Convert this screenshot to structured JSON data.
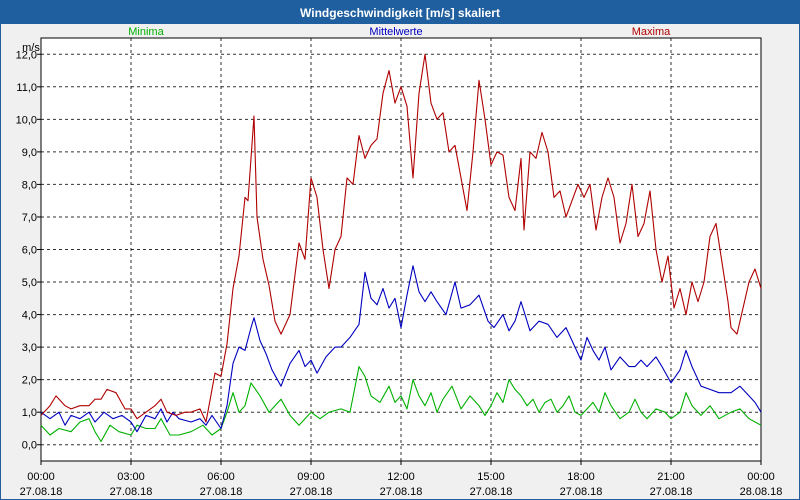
{
  "window": {
    "title": "Windgeschwindigkeit [m/s] skaliert"
  },
  "chart_data": {
    "type": "line",
    "title": "Windgeschwindigkeit [m/s] skaliert",
    "ylabel": "m/s",
    "ylim": [
      -0.5,
      12.5
    ],
    "xlim_hours": [
      0,
      24
    ],
    "y_ticks": [
      "0,0",
      "1,0",
      "2,0",
      "3,0",
      "4,0",
      "5,0",
      "6,0",
      "7,0",
      "8,0",
      "9,0",
      "10,0",
      "11,0",
      "12,0"
    ],
    "x_ticks": [
      {
        "time": "00:00",
        "date": "27.08.18"
      },
      {
        "time": "03:00",
        "date": "27.08.18"
      },
      {
        "time": "06:00",
        "date": "27.08.18"
      },
      {
        "time": "09:00",
        "date": "27.08.18"
      },
      {
        "time": "12:00",
        "date": "27.08.18"
      },
      {
        "time": "15:00",
        "date": "27.08.18"
      },
      {
        "time": "18:00",
        "date": "27.08.18"
      },
      {
        "time": "21:00",
        "date": "27.08.18"
      },
      {
        "time": "00:00",
        "date": "28.08.18"
      }
    ],
    "grid": true,
    "legend_position": "top",
    "series": [
      {
        "name": "Minima",
        "color": "#00b000",
        "points": [
          [
            0,
            0.6
          ],
          [
            0.3,
            0.3
          ],
          [
            0.6,
            0.5
          ],
          [
            1,
            0.4
          ],
          [
            1.3,
            0.7
          ],
          [
            1.6,
            0.8
          ],
          [
            1.8,
            0.4
          ],
          [
            2,
            0.1
          ],
          [
            2.3,
            0.6
          ],
          [
            2.6,
            0.4
          ],
          [
            3,
            0.3
          ],
          [
            3.2,
            0.6
          ],
          [
            3.5,
            0.5
          ],
          [
            3.8,
            0.5
          ],
          [
            4,
            0.8
          ],
          [
            4.3,
            0.3
          ],
          [
            4.6,
            0.3
          ],
          [
            5,
            0.4
          ],
          [
            5.4,
            0.6
          ],
          [
            5.7,
            0.3
          ],
          [
            6,
            0.5
          ],
          [
            6.2,
            1.0
          ],
          [
            6.4,
            1.6
          ],
          [
            6.6,
            1.0
          ],
          [
            6.8,
            1.2
          ],
          [
            7,
            1.9
          ],
          [
            7.3,
            1.5
          ],
          [
            7.6,
            1.0
          ],
          [
            8,
            1.4
          ],
          [
            8.3,
            0.9
          ],
          [
            8.6,
            0.6
          ],
          [
            9,
            1.0
          ],
          [
            9.3,
            0.8
          ],
          [
            9.6,
            1.0
          ],
          [
            10,
            1.1
          ],
          [
            10.3,
            1.0
          ],
          [
            10.6,
            2.4
          ],
          [
            10.8,
            2.1
          ],
          [
            11,
            1.5
          ],
          [
            11.3,
            1.3
          ],
          [
            11.6,
            1.8
          ],
          [
            11.8,
            1.3
          ],
          [
            12,
            1.5
          ],
          [
            12.2,
            1.1
          ],
          [
            12.4,
            2.0
          ],
          [
            12.6,
            1.5
          ],
          [
            12.8,
            1.2
          ],
          [
            13,
            1.6
          ],
          [
            13.2,
            1.0
          ],
          [
            13.4,
            1.4
          ],
          [
            13.7,
            1.8
          ],
          [
            14,
            1.1
          ],
          [
            14.3,
            1.5
          ],
          [
            14.6,
            1.2
          ],
          [
            14.8,
            0.9
          ],
          [
            15,
            1.2
          ],
          [
            15.2,
            1.6
          ],
          [
            15.4,
            1.3
          ],
          [
            15.6,
            2.0
          ],
          [
            15.8,
            1.7
          ],
          [
            16,
            1.5
          ],
          [
            16.2,
            1.2
          ],
          [
            16.4,
            1.4
          ],
          [
            16.6,
            1.0
          ],
          [
            16.8,
            1.3
          ],
          [
            17,
            1.4
          ],
          [
            17.2,
            1.0
          ],
          [
            17.4,
            1.2
          ],
          [
            17.6,
            1.5
          ],
          [
            17.8,
            1.0
          ],
          [
            18,
            0.9
          ],
          [
            18.2,
            1.1
          ],
          [
            18.4,
            1.3
          ],
          [
            18.6,
            1.0
          ],
          [
            18.8,
            1.6
          ],
          [
            19,
            1.2
          ],
          [
            19.3,
            0.8
          ],
          [
            19.6,
            1.0
          ],
          [
            19.8,
            1.4
          ],
          [
            20,
            1.0
          ],
          [
            20.2,
            0.8
          ],
          [
            20.5,
            1.1
          ],
          [
            20.8,
            1.0
          ],
          [
            21,
            0.8
          ],
          [
            21.3,
            1.0
          ],
          [
            21.5,
            1.6
          ],
          [
            21.7,
            1.2
          ],
          [
            22,
            0.9
          ],
          [
            22.3,
            1.2
          ],
          [
            22.6,
            0.8
          ],
          [
            23,
            1.0
          ],
          [
            23.3,
            1.1
          ],
          [
            23.6,
            0.8
          ],
          [
            23.8,
            0.7
          ],
          [
            24,
            0.6
          ]
        ]
      },
      {
        "name": "Mittelwerte",
        "color": "#0000c0",
        "points": [
          [
            0,
            1.0
          ],
          [
            0.3,
            0.8
          ],
          [
            0.6,
            1.0
          ],
          [
            0.8,
            0.6
          ],
          [
            1,
            0.9
          ],
          [
            1.3,
            0.8
          ],
          [
            1.6,
            1.0
          ],
          [
            1.8,
            0.7
          ],
          [
            2.1,
            1.0
          ],
          [
            2.4,
            0.8
          ],
          [
            2.7,
            0.9
          ],
          [
            3,
            0.7
          ],
          [
            3.2,
            0.4
          ],
          [
            3.5,
            0.9
          ],
          [
            3.8,
            0.8
          ],
          [
            4,
            1.1
          ],
          [
            4.2,
            0.7
          ],
          [
            4.4,
            1.0
          ],
          [
            4.6,
            0.8
          ],
          [
            5,
            0.7
          ],
          [
            5.3,
            0.8
          ],
          [
            5.5,
            0.6
          ],
          [
            5.7,
            0.9
          ],
          [
            6,
            0.5
          ],
          [
            6.2,
            1.2
          ],
          [
            6.4,
            2.5
          ],
          [
            6.6,
            3.0
          ],
          [
            6.8,
            2.9
          ],
          [
            7,
            3.6
          ],
          [
            7.1,
            3.9
          ],
          [
            7.3,
            3.2
          ],
          [
            7.5,
            2.8
          ],
          [
            7.7,
            2.3
          ],
          [
            8,
            1.8
          ],
          [
            8.3,
            2.5
          ],
          [
            8.6,
            2.9
          ],
          [
            8.8,
            2.4
          ],
          [
            9,
            2.6
          ],
          [
            9.2,
            2.2
          ],
          [
            9.5,
            2.7
          ],
          [
            9.8,
            3.0
          ],
          [
            10,
            3.0
          ],
          [
            10.3,
            3.3
          ],
          [
            10.6,
            3.7
          ],
          [
            10.8,
            5.3
          ],
          [
            11,
            4.5
          ],
          [
            11.2,
            4.3
          ],
          [
            11.4,
            4.8
          ],
          [
            11.6,
            4.2
          ],
          [
            11.8,
            4.5
          ],
          [
            12,
            3.6
          ],
          [
            12.2,
            4.6
          ],
          [
            12.4,
            5.5
          ],
          [
            12.6,
            4.7
          ],
          [
            12.8,
            4.4
          ],
          [
            13,
            4.7
          ],
          [
            13.2,
            4.4
          ],
          [
            13.5,
            4.0
          ],
          [
            13.8,
            5.0
          ],
          [
            14,
            4.2
          ],
          [
            14.3,
            4.3
          ],
          [
            14.6,
            4.6
          ],
          [
            14.9,
            3.8
          ],
          [
            15.1,
            3.6
          ],
          [
            15.4,
            4.0
          ],
          [
            15.6,
            3.5
          ],
          [
            15.8,
            3.8
          ],
          [
            16,
            4.4
          ],
          [
            16.3,
            3.5
          ],
          [
            16.6,
            3.8
          ],
          [
            16.9,
            3.7
          ],
          [
            17.2,
            3.3
          ],
          [
            17.5,
            3.6
          ],
          [
            17.7,
            3.2
          ],
          [
            18,
            2.6
          ],
          [
            18.2,
            3.3
          ],
          [
            18.4,
            2.9
          ],
          [
            18.6,
            2.6
          ],
          [
            18.8,
            3.0
          ],
          [
            19,
            2.3
          ],
          [
            19.3,
            2.7
          ],
          [
            19.6,
            2.4
          ],
          [
            19.8,
            2.4
          ],
          [
            20,
            2.6
          ],
          [
            20.2,
            2.4
          ],
          [
            20.5,
            2.7
          ],
          [
            20.7,
            2.4
          ],
          [
            21,
            1.9
          ],
          [
            21.3,
            2.3
          ],
          [
            21.5,
            2.9
          ],
          [
            21.7,
            2.4
          ],
          [
            22,
            1.8
          ],
          [
            22.3,
            1.7
          ],
          [
            22.6,
            1.6
          ],
          [
            23,
            1.6
          ],
          [
            23.3,
            1.8
          ],
          [
            23.6,
            1.5
          ],
          [
            23.8,
            1.3
          ],
          [
            24,
            1.0
          ]
        ]
      },
      {
        "name": "Maxima",
        "color": "#b00000",
        "points": [
          [
            0,
            0.9
          ],
          [
            0.3,
            1.2
          ],
          [
            0.5,
            1.5
          ],
          [
            0.8,
            1.2
          ],
          [
            1,
            1.1
          ],
          [
            1.3,
            1.2
          ],
          [
            1.6,
            1.2
          ],
          [
            1.8,
            1.4
          ],
          [
            2,
            1.4
          ],
          [
            2.2,
            1.7
          ],
          [
            2.5,
            1.6
          ],
          [
            2.8,
            1.1
          ],
          [
            3,
            1.1
          ],
          [
            3.2,
            0.8
          ],
          [
            3.5,
            1.0
          ],
          [
            3.8,
            1.2
          ],
          [
            4,
            1.4
          ],
          [
            4.2,
            1.0
          ],
          [
            4.5,
            0.9
          ],
          [
            4.8,
            1.0
          ],
          [
            5,
            1.0
          ],
          [
            5.3,
            1.1
          ],
          [
            5.5,
            0.7
          ],
          [
            5.8,
            2.2
          ],
          [
            6,
            2.1
          ],
          [
            6.2,
            3.1
          ],
          [
            6.4,
            4.8
          ],
          [
            6.6,
            5.8
          ],
          [
            6.8,
            7.6
          ],
          [
            6.9,
            7.5
          ],
          [
            7.1,
            10.1
          ],
          [
            7.2,
            7.0
          ],
          [
            7.4,
            5.7
          ],
          [
            7.6,
            4.9
          ],
          [
            7.8,
            3.8
          ],
          [
            8,
            3.4
          ],
          [
            8.3,
            4.0
          ],
          [
            8.6,
            6.2
          ],
          [
            8.8,
            5.7
          ],
          [
            9,
            8.2
          ],
          [
            9.2,
            7.6
          ],
          [
            9.4,
            6.0
          ],
          [
            9.6,
            4.8
          ],
          [
            9.8,
            6.0
          ],
          [
            10,
            6.4
          ],
          [
            10.2,
            8.2
          ],
          [
            10.4,
            8.0
          ],
          [
            10.6,
            9.5
          ],
          [
            10.8,
            8.8
          ],
          [
            11,
            9.2
          ],
          [
            11.2,
            9.4
          ],
          [
            11.4,
            10.8
          ],
          [
            11.6,
            11.5
          ],
          [
            11.8,
            10.5
          ],
          [
            12,
            11.0
          ],
          [
            12.2,
            10.4
          ],
          [
            12.4,
            8.2
          ],
          [
            12.6,
            10.8
          ],
          [
            12.8,
            12.0
          ],
          [
            13,
            10.5
          ],
          [
            13.2,
            10.0
          ],
          [
            13.4,
            10.2
          ],
          [
            13.6,
            9.0
          ],
          [
            13.8,
            9.2
          ],
          [
            14,
            8.2
          ],
          [
            14.2,
            7.2
          ],
          [
            14.4,
            9.0
          ],
          [
            14.6,
            11.2
          ],
          [
            14.8,
            10.0
          ],
          [
            15,
            8.6
          ],
          [
            15.2,
            9.0
          ],
          [
            15.4,
            8.9
          ],
          [
            15.6,
            7.6
          ],
          [
            15.8,
            7.2
          ],
          [
            16,
            8.8
          ],
          [
            16.1,
            6.6
          ],
          [
            16.3,
            9.0
          ],
          [
            16.5,
            8.8
          ],
          [
            16.7,
            9.6
          ],
          [
            16.9,
            9.0
          ],
          [
            17.1,
            7.6
          ],
          [
            17.3,
            7.8
          ],
          [
            17.5,
            7.0
          ],
          [
            17.7,
            7.5
          ],
          [
            17.9,
            8.0
          ],
          [
            18.1,
            7.6
          ],
          [
            18.3,
            8.0
          ],
          [
            18.5,
            6.6
          ],
          [
            18.7,
            7.6
          ],
          [
            18.9,
            8.2
          ],
          [
            19.1,
            7.6
          ],
          [
            19.3,
            6.2
          ],
          [
            19.5,
            6.8
          ],
          [
            19.7,
            8.0
          ],
          [
            19.9,
            6.4
          ],
          [
            20.1,
            6.8
          ],
          [
            20.3,
            7.8
          ],
          [
            20.5,
            6.0
          ],
          [
            20.7,
            5.0
          ],
          [
            20.9,
            5.8
          ],
          [
            21.1,
            4.2
          ],
          [
            21.3,
            4.8
          ],
          [
            21.5,
            4.0
          ],
          [
            21.7,
            5.0
          ],
          [
            21.9,
            4.4
          ],
          [
            22.1,
            5.0
          ],
          [
            22.3,
            6.4
          ],
          [
            22.5,
            6.8
          ],
          [
            22.7,
            5.6
          ],
          [
            22.9,
            4.4
          ],
          [
            23,
            3.6
          ],
          [
            23.2,
            3.4
          ],
          [
            23.4,
            4.2
          ],
          [
            23.6,
            5.0
          ],
          [
            23.8,
            5.4
          ],
          [
            24,
            4.8
          ]
        ]
      }
    ]
  }
}
